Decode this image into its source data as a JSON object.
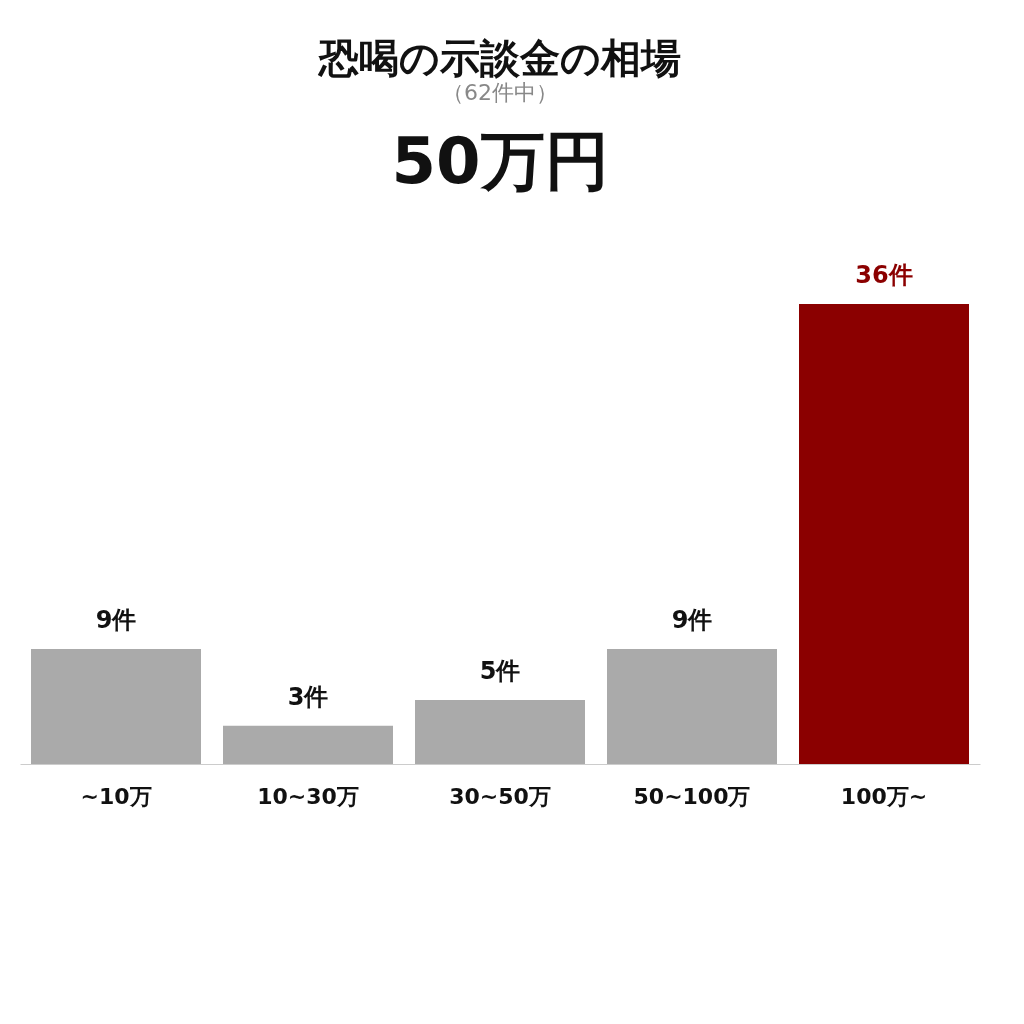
{
  "chart_data": {
    "type": "bar",
    "title": "恐喝の示談金の相場",
    "subtitle": "（62件中）",
    "annotations": [
      "50万円"
    ],
    "categories": [
      "~10万",
      "10~30万",
      "30~50万",
      "50~100万",
      "100万~"
    ],
    "values": [
      9,
      3,
      5,
      9,
      36
    ],
    "colors": [
      "#aaaaaa",
      "#aaaaaa",
      "#aaaaaa",
      "#aaaaaa",
      "#8b0000"
    ],
    "value_labels": [
      "9件",
      "3件",
      "5件",
      "9件",
      "36件"
    ],
    "grid": false
  }
}
